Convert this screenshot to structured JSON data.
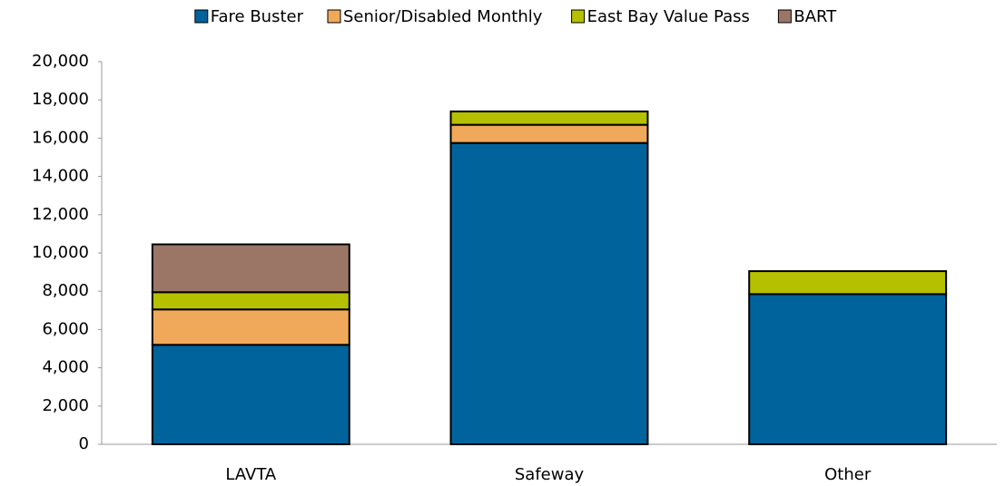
{
  "chart_data": {
    "type": "stacked_bar",
    "categories": [
      "LAVTA",
      "Safeway",
      "Other"
    ],
    "series": [
      {
        "name": "Fare Buster",
        "color": "#00639c",
        "values": [
          5200,
          15750,
          7850
        ]
      },
      {
        "name": "Senior/Disabled Monthly",
        "color": "#f0a95a",
        "values": [
          1850,
          950,
          0
        ]
      },
      {
        "name": "East Bay Value Pass",
        "color": "#b5c000",
        "values": [
          900,
          700,
          1200
        ]
      },
      {
        "name": "BART",
        "color": "#9b7667",
        "values": [
          2500,
          0,
          0
        ]
      }
    ],
    "ylim": [
      0,
      20000
    ],
    "yticks": [
      0,
      {
        "value": 2000,
        "label": "2,000"
      },
      {
        "value": 4000,
        "label": "4,000"
      },
      {
        "value": 6000,
        "label": "6,000"
      },
      {
        "value": 8000,
        "label": "8,000"
      },
      {
        "value": 10000,
        "label": "10,000"
      },
      {
        "value": 12000,
        "label": "12,000"
      },
      {
        "value": 14000,
        "label": "14,000"
      },
      {
        "value": 16000,
        "label": "16,000"
      },
      {
        "value": 18000,
        "label": "18,000"
      },
      {
        "value": 20000,
        "label": "20,000"
      }
    ],
    "legend": "top"
  }
}
